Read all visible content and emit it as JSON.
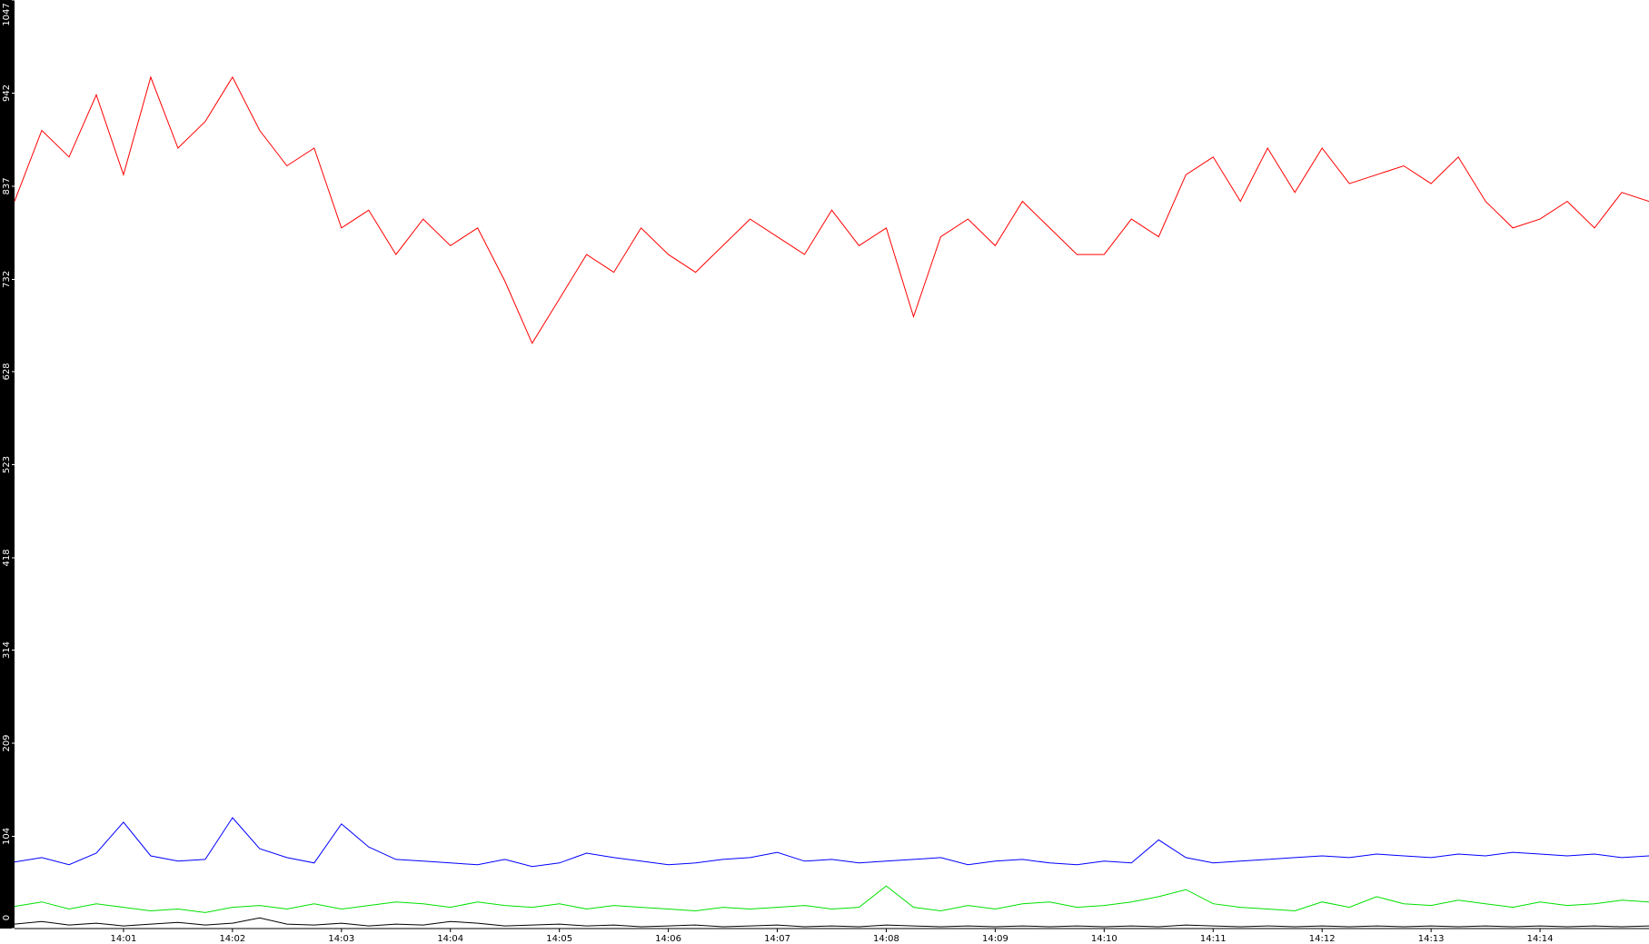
{
  "chart_data": {
    "type": "line",
    "x": [
      840,
      840.25,
      840.5,
      840.75,
      841,
      841.25,
      841.5,
      841.75,
      842,
      842.25,
      842.5,
      842.75,
      843,
      843.25,
      843.5,
      843.75,
      844,
      844.25,
      844.5,
      844.75,
      845,
      845.25,
      845.5,
      845.75,
      846,
      846.25,
      846.5,
      846.75,
      847,
      847.25,
      847.5,
      847.75,
      848,
      848.25,
      848.5,
      848.75,
      849,
      849.25,
      849.5,
      849.75,
      850,
      850.25,
      850.5,
      850.75,
      851,
      851.25,
      851.5,
      851.75,
      852,
      852.25,
      852.5,
      852.75,
      853,
      853.25,
      853.5,
      853.75,
      854,
      854.25,
      854.5,
      854.75,
      855
    ],
    "xlim": [
      840,
      855
    ],
    "xticks": [
      {
        "value": 841,
        "label": "14:01"
      },
      {
        "value": 842,
        "label": "14:02"
      },
      {
        "value": 843,
        "label": "14:03"
      },
      {
        "value": 844,
        "label": "14:04"
      },
      {
        "value": 845,
        "label": "14:05"
      },
      {
        "value": 846,
        "label": "14:06"
      },
      {
        "value": 847,
        "label": "14:07"
      },
      {
        "value": 848,
        "label": "14:08"
      },
      {
        "value": 849,
        "label": "14:09"
      },
      {
        "value": 850,
        "label": "14:10"
      },
      {
        "value": 851,
        "label": "14:11"
      },
      {
        "value": 852,
        "label": "14:12"
      },
      {
        "value": 853,
        "label": "14:13"
      },
      {
        "value": 854,
        "label": "14:14"
      }
    ],
    "ylim": [
      0,
      1047
    ],
    "yticks": [
      0,
      104,
      209,
      314,
      418,
      523,
      628,
      732,
      837,
      942,
      1047
    ],
    "series": [
      {
        "color": "#ff0000",
        "values": [
          820,
          900,
          870,
          940,
          850,
          960,
          880,
          910,
          960,
          900,
          860,
          880,
          790,
          810,
          760,
          800,
          770,
          790,
          730,
          660,
          710,
          760,
          740,
          790,
          760,
          740,
          770,
          800,
          780,
          760,
          810,
          770,
          790,
          690,
          780,
          800,
          770,
          820,
          790,
          760,
          760,
          800,
          780,
          850,
          870,
          820,
          880,
          830,
          880,
          840,
          850,
          860,
          840,
          870,
          820,
          790,
          800,
          820,
          790,
          830,
          820
        ]
      },
      {
        "color": "#0000ff",
        "values": [
          75,
          80,
          72,
          85,
          120,
          82,
          76,
          78,
          125,
          90,
          80,
          74,
          118,
          92,
          78,
          76,
          74,
          72,
          78,
          70,
          74,
          85,
          80,
          76,
          72,
          74,
          78,
          80,
          86,
          76,
          78,
          74,
          76,
          78,
          80,
          72,
          76,
          78,
          74,
          72,
          76,
          74,
          100,
          80,
          74,
          76,
          78,
          80,
          82,
          80,
          84,
          82,
          80,
          84,
          82,
          86,
          84,
          82,
          84,
          80,
          82
        ]
      },
      {
        "color": "#00e000",
        "values": [
          25,
          30,
          22,
          28,
          24,
          20,
          22,
          18,
          24,
          26,
          22,
          28,
          22,
          26,
          30,
          28,
          24,
          30,
          26,
          24,
          28,
          22,
          26,
          24,
          22,
          20,
          24,
          22,
          24,
          26,
          22,
          24,
          48,
          24,
          20,
          26,
          22,
          28,
          30,
          24,
          26,
          30,
          36,
          44,
          28,
          24,
          22,
          20,
          30,
          24,
          36,
          28,
          26,
          32,
          28,
          24,
          30,
          26,
          28,
          32,
          30
        ]
      },
      {
        "color": "#000000",
        "values": [
          5,
          8,
          4,
          6,
          3,
          5,
          7,
          4,
          6,
          12,
          5,
          4,
          6,
          3,
          5,
          4,
          8,
          6,
          3,
          4,
          5,
          3,
          4,
          2,
          3,
          4,
          2,
          3,
          4,
          2,
          3,
          2,
          4,
          3,
          2,
          3,
          2,
          3,
          2,
          3,
          2,
          3,
          2,
          4,
          3,
          2,
          3,
          2,
          3,
          2,
          3,
          2,
          3,
          2,
          3,
          2,
          3,
          2,
          3,
          2,
          3
        ]
      }
    ]
  }
}
